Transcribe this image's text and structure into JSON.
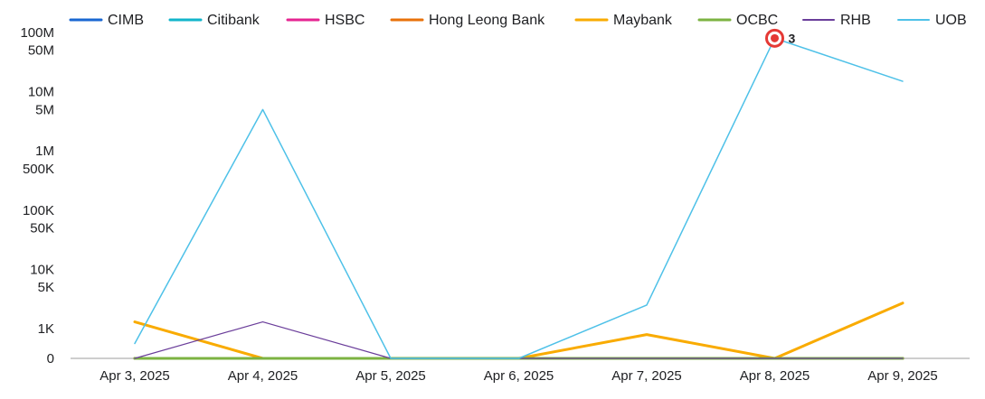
{
  "chart_data": {
    "type": "line",
    "title": "",
    "xlabel": "",
    "ylabel": "",
    "x_scale": "log-like",
    "grid": false,
    "legend_position": "top",
    "categories": [
      "Apr 3, 2025",
      "Apr 4, 2025",
      "Apr 5, 2025",
      "Apr 6, 2025",
      "Apr 7, 2025",
      "Apr 8, 2025",
      "Apr 9, 2025"
    ],
    "y_ticks": [
      {
        "label": "100M",
        "value": 100000000
      },
      {
        "label": "50M",
        "value": 50000000
      },
      {
        "label": "10M",
        "value": 10000000
      },
      {
        "label": "5M",
        "value": 5000000
      },
      {
        "label": "1M",
        "value": 1000000
      },
      {
        "label": "500K",
        "value": 500000
      },
      {
        "label": "100K",
        "value": 100000
      },
      {
        "label": "50K",
        "value": 50000
      },
      {
        "label": "10K",
        "value": 10000
      },
      {
        "label": "5K",
        "value": 5000
      },
      {
        "label": "1K",
        "value": 1000
      },
      {
        "label": "0",
        "value": 0
      }
    ],
    "series": [
      {
        "name": "CIMB",
        "color": "#1967d2",
        "width": 3,
        "values": [
          0,
          0,
          0,
          0,
          0,
          0,
          0
        ]
      },
      {
        "name": "Citibank",
        "color": "#12b5cb",
        "width": 3,
        "values": [
          0,
          0,
          0,
          0,
          0,
          0,
          0
        ]
      },
      {
        "name": "HSBC",
        "color": "#e52592",
        "width": 3,
        "values": [
          0,
          0,
          0,
          0,
          0,
          0,
          0
        ]
      },
      {
        "name": "Hong Leong Bank",
        "color": "#e8710a",
        "width": 3,
        "values": [
          0,
          0,
          0,
          0,
          0,
          0,
          0
        ]
      },
      {
        "name": "Maybank",
        "color": "#f9ab00",
        "width": 3,
        "values": [
          1300,
          0,
          0,
          0,
          800,
          0,
          2700
        ]
      },
      {
        "name": "OCBC",
        "color": "#7cb342",
        "width": 3,
        "values": [
          0,
          0,
          0,
          0,
          0,
          0,
          0
        ]
      },
      {
        "name": "RHB",
        "color": "#6a3d9a",
        "width": 1.2,
        "values": [
          0,
          1300,
          0,
          0,
          0,
          0,
          0
        ]
      },
      {
        "name": "UOB",
        "color": "#4ec1e8",
        "width": 1.5,
        "values": [
          500,
          5000000,
          0,
          0,
          2500,
          80000000,
          15000000
        ]
      }
    ],
    "annotations": [
      {
        "series": "UOB",
        "category": "Apr 8, 2025",
        "label": "3"
      }
    ]
  }
}
